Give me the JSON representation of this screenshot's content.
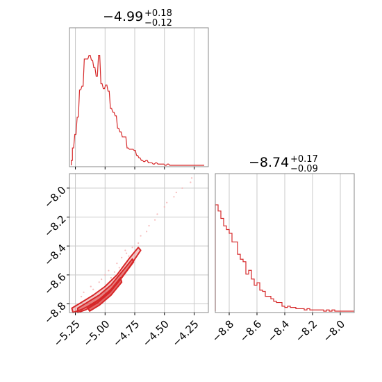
{
  "colors": {
    "series": "#d62728",
    "grid": "#c8c8c8",
    "frame": "#888888"
  },
  "chart_data": [
    {
      "type": "histogram",
      "panel": "x-marginal",
      "title": {
        "median": "−4.99",
        "plus": "+0.18",
        "minus": "−0.12"
      },
      "xlim": [
        -5.3,
        -4.13
      ],
      "grid": true,
      "x_ticks": [
        -5.25,
        -5.0,
        -4.75,
        -4.5,
        -4.25
      ],
      "bins": [
        {
          "x": -5.28,
          "y": 0.04
        },
        {
          "x": -5.27,
          "y": 0.14
        },
        {
          "x": -5.25,
          "y": 0.25
        },
        {
          "x": -5.23,
          "y": 0.39
        },
        {
          "x": -5.21,
          "y": 0.61
        },
        {
          "x": -5.19,
          "y": 0.64
        },
        {
          "x": -5.17,
          "y": 0.86
        },
        {
          "x": -5.15,
          "y": 0.86
        },
        {
          "x": -5.13,
          "y": 0.89
        },
        {
          "x": -5.11,
          "y": 0.85
        },
        {
          "x": -5.09,
          "y": 0.79
        },
        {
          "x": -5.07,
          "y": 0.72
        },
        {
          "x": -5.05,
          "y": 0.89
        },
        {
          "x": -5.03,
          "y": 0.66
        },
        {
          "x": -5.01,
          "y": 0.62
        },
        {
          "x": -4.99,
          "y": 0.65
        },
        {
          "x": -4.97,
          "y": 0.6
        },
        {
          "x": -4.95,
          "y": 0.46
        },
        {
          "x": -4.93,
          "y": 0.43
        },
        {
          "x": -4.91,
          "y": 0.4
        },
        {
          "x": -4.89,
          "y": 0.3
        },
        {
          "x": -4.87,
          "y": 0.27
        },
        {
          "x": -4.85,
          "y": 0.23
        },
        {
          "x": -4.83,
          "y": 0.23
        },
        {
          "x": -4.81,
          "y": 0.14
        },
        {
          "x": -4.79,
          "y": 0.13
        },
        {
          "x": -4.77,
          "y": 0.13
        },
        {
          "x": -4.75,
          "y": 0.12
        },
        {
          "x": -4.73,
          "y": 0.08
        },
        {
          "x": -4.71,
          "y": 0.06
        },
        {
          "x": -4.69,
          "y": 0.04
        },
        {
          "x": -4.67,
          "y": 0.03
        },
        {
          "x": -4.65,
          "y": 0.04
        },
        {
          "x": -4.63,
          "y": 0.02
        },
        {
          "x": -4.61,
          "y": 0.02
        },
        {
          "x": -4.59,
          "y": 0.01
        },
        {
          "x": -4.57,
          "y": 0.02
        },
        {
          "x": -4.55,
          "y": 0.01
        },
        {
          "x": -4.53,
          "y": 0.01
        },
        {
          "x": -4.51,
          "y": 0.01
        },
        {
          "x": -4.49,
          "y": 0.0
        },
        {
          "x": -4.47,
          "y": 0.01
        },
        {
          "x": -4.45,
          "y": 0.0
        },
        {
          "x": -4.43,
          "y": 0.0
        },
        {
          "x": -4.41,
          "y": 0.0
        },
        {
          "x": -4.35,
          "y": 0.0
        },
        {
          "x": -4.25,
          "y": 0.0
        },
        {
          "x": -4.17,
          "y": 0.0
        }
      ]
    },
    {
      "type": "histogram",
      "panel": "y-marginal",
      "title": {
        "median": "−8.74",
        "plus": "+0.17",
        "minus": "−0.09"
      },
      "xlim": [
        -8.9,
        -7.9
      ],
      "grid": true,
      "x_ticks": [
        -8.8,
        -8.6,
        -8.4,
        -8.2,
        -8.0
      ],
      "x_tick_labels": [
        "−8.8",
        "−8.6",
        "−8.4",
        "−8.2",
        "−8.0"
      ],
      "bins": [
        {
          "x": -8.89,
          "y": 0.86
        },
        {
          "x": -8.87,
          "y": 0.81
        },
        {
          "x": -8.85,
          "y": 0.75
        },
        {
          "x": -8.83,
          "y": 0.69
        },
        {
          "x": -8.81,
          "y": 0.66
        },
        {
          "x": -8.79,
          "y": 0.63
        },
        {
          "x": -8.77,
          "y": 0.56
        },
        {
          "x": -8.75,
          "y": 0.56
        },
        {
          "x": -8.73,
          "y": 0.46
        },
        {
          "x": -8.71,
          "y": 0.42
        },
        {
          "x": -8.69,
          "y": 0.4
        },
        {
          "x": -8.67,
          "y": 0.3
        },
        {
          "x": -8.65,
          "y": 0.33
        },
        {
          "x": -8.63,
          "y": 0.26
        },
        {
          "x": -8.61,
          "y": 0.21
        },
        {
          "x": -8.59,
          "y": 0.23
        },
        {
          "x": -8.57,
          "y": 0.17
        },
        {
          "x": -8.55,
          "y": 0.16
        },
        {
          "x": -8.53,
          "y": 0.12
        },
        {
          "x": -8.51,
          "y": 0.12
        },
        {
          "x": -8.49,
          "y": 0.1
        },
        {
          "x": -8.47,
          "y": 0.08
        },
        {
          "x": -8.45,
          "y": 0.07
        },
        {
          "x": -8.43,
          "y": 0.07
        },
        {
          "x": -8.41,
          "y": 0.04
        },
        {
          "x": -8.39,
          "y": 0.03
        },
        {
          "x": -8.37,
          "y": 0.04
        },
        {
          "x": -8.35,
          "y": 0.03
        },
        {
          "x": -8.33,
          "y": 0.03
        },
        {
          "x": -8.31,
          "y": 0.02
        },
        {
          "x": -8.29,
          "y": 0.02
        },
        {
          "x": -8.27,
          "y": 0.02
        },
        {
          "x": -8.25,
          "y": 0.01
        },
        {
          "x": -8.23,
          "y": 0.02
        },
        {
          "x": -8.21,
          "y": 0.01
        },
        {
          "x": -8.19,
          "y": 0.01
        },
        {
          "x": -8.17,
          "y": 0.01
        },
        {
          "x": -8.15,
          "y": 0.01
        },
        {
          "x": -8.13,
          "y": 0.01
        },
        {
          "x": -8.11,
          "y": 0.0
        },
        {
          "x": -8.09,
          "y": 0.01
        },
        {
          "x": -8.07,
          "y": 0.0
        },
        {
          "x": -8.05,
          "y": 0.01
        },
        {
          "x": -8.03,
          "y": 0.0
        },
        {
          "x": -8.01,
          "y": 0.0
        },
        {
          "x": -7.99,
          "y": 0.0
        },
        {
          "x": -7.97,
          "y": 0.0
        },
        {
          "x": -7.95,
          "y": 0.0
        },
        {
          "x": -7.93,
          "y": 0.0
        },
        {
          "x": -7.91,
          "y": 0.0
        }
      ]
    },
    {
      "type": "scatter",
      "panel": "joint",
      "xlim": [
        -5.3,
        -4.13
      ],
      "ylim": [
        -8.86,
        -7.9
      ],
      "grid": true,
      "x_ticks": [
        -5.25,
        -5.0,
        -4.75,
        -4.5,
        -4.25
      ],
      "x_tick_labels": [
        "−5.25",
        "−5.00",
        "−4.75",
        "−4.50",
        "−4.25"
      ],
      "y_ticks": [
        -8.0,
        -8.2,
        -8.4,
        -8.6,
        -8.8
      ],
      "y_tick_labels": [
        "−8.0",
        "−8.2",
        "−8.4",
        "−8.6",
        "−8.8"
      ],
      "contours": [
        {
          "level": "outer",
          "points": [
            [
              -5.28,
              -8.83
            ],
            [
              -5.2,
              -8.79
            ],
            [
              -5.1,
              -8.74
            ],
            [
              -5.0,
              -8.68
            ],
            [
              -4.9,
              -8.6
            ],
            [
              -4.8,
              -8.49
            ],
            [
              -4.72,
              -8.41
            ],
            [
              -4.7,
              -8.43
            ],
            [
              -4.79,
              -8.54
            ],
            [
              -4.9,
              -8.66
            ],
            [
              -5.0,
              -8.74
            ],
            [
              -5.1,
              -8.8
            ],
            [
              -5.2,
              -8.84
            ],
            [
              -5.27,
              -8.86
            ]
          ]
        },
        {
          "level": "middle",
          "points": [
            [
              -5.23,
              -8.83
            ],
            [
              -5.15,
              -8.79
            ],
            [
              -5.05,
              -8.74
            ],
            [
              -4.95,
              -8.67
            ],
            [
              -4.85,
              -8.57
            ],
            [
              -4.77,
              -8.49
            ],
            [
              -4.76,
              -8.51
            ],
            [
              -4.86,
              -8.62
            ],
            [
              -4.96,
              -8.72
            ],
            [
              -5.06,
              -8.79
            ],
            [
              -5.16,
              -8.84
            ],
            [
              -5.23,
              -8.86
            ]
          ]
        },
        {
          "level": "inner",
          "points": [
            [
              -5.15,
              -8.82
            ],
            [
              -5.05,
              -8.77
            ],
            [
              -4.95,
              -8.7
            ],
            [
              -4.87,
              -8.62
            ],
            [
              -4.86,
              -8.65
            ],
            [
              -4.95,
              -8.74
            ],
            [
              -5.05,
              -8.81
            ],
            [
              -5.13,
              -8.85
            ]
          ]
        }
      ],
      "samples": [
        [
          -4.95,
          -8.62
        ],
        [
          -4.88,
          -8.55
        ],
        [
          -4.8,
          -8.47
        ],
        [
          -4.72,
          -8.38
        ],
        [
          -4.65,
          -8.3
        ],
        [
          -4.58,
          -8.22
        ],
        [
          -4.5,
          -8.13
        ],
        [
          -4.42,
          -8.06
        ],
        [
          -4.35,
          -8.0
        ],
        [
          -4.28,
          -7.96
        ],
        [
          -4.27,
          -7.93
        ],
        [
          -5.1,
          -8.7
        ],
        [
          -5.05,
          -8.65
        ],
        [
          -5.0,
          -8.6
        ],
        [
          -4.92,
          -8.58
        ],
        [
          -4.86,
          -8.48
        ],
        [
          -4.83,
          -8.43
        ],
        [
          -4.77,
          -8.41
        ],
        [
          -4.7,
          -8.33
        ],
        [
          -4.63,
          -8.26
        ],
        [
          -4.56,
          -8.18
        ],
        [
          -4.48,
          -8.1
        ],
        [
          -4.4,
          -8.03
        ],
        [
          -5.2,
          -8.75
        ],
        [
          -5.18,
          -8.72
        ],
        [
          -5.12,
          -8.68
        ],
        [
          -5.03,
          -8.63
        ],
        [
          -4.97,
          -8.57
        ],
        [
          -4.9,
          -8.52
        ],
        [
          -4.82,
          -8.45
        ]
      ]
    }
  ]
}
